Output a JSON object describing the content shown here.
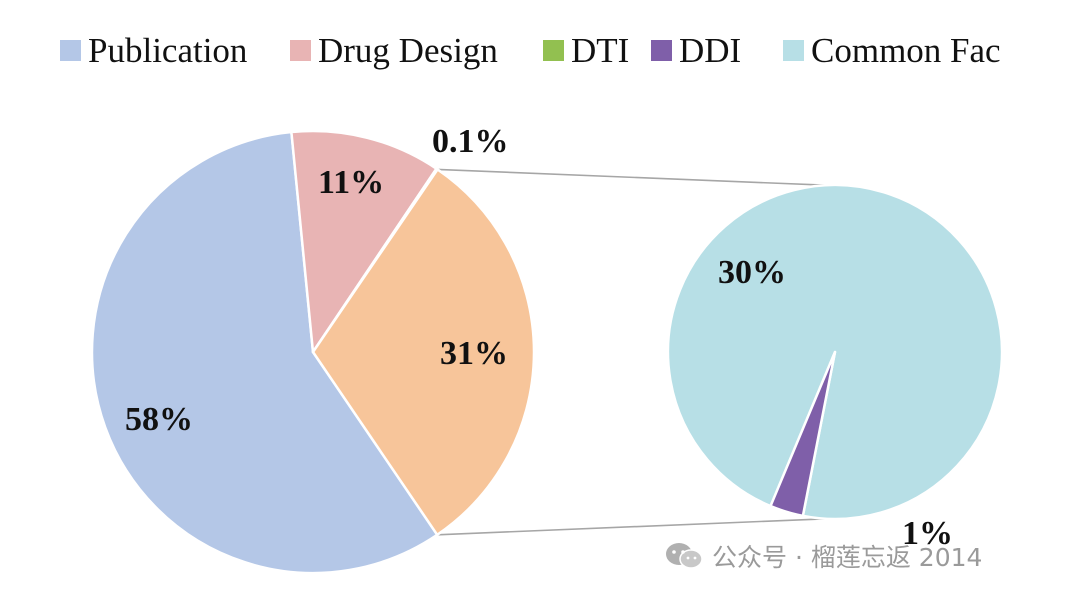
{
  "chart_data": {
    "type": "pie",
    "legend": {
      "placement": "top",
      "entries": [
        {
          "name": "Publication",
          "color": "#b4c7e7"
        },
        {
          "name": "Drug Design",
          "color": "#e8b4b4"
        },
        {
          "name": "DTI",
          "color": "#92c050"
        },
        {
          "name": "DDI",
          "color": "#7f5fa9"
        },
        {
          "name": "Common Fac",
          "color": "#b7dfe6"
        }
      ]
    },
    "main_pie": {
      "slices": [
        {
          "label": "58%",
          "value": 58,
          "color": "#b4c7e7"
        },
        {
          "label": "11%",
          "value": 11,
          "color": "#e8b4b4"
        },
        {
          "label": "0.1%",
          "value": 0.1,
          "color": "#92c050"
        },
        {
          "label": "31%",
          "value": 31,
          "color": "#f7c59a"
        }
      ]
    },
    "sub_pie": {
      "slices": [
        {
          "label": "30%",
          "value": 30,
          "color": "#b7dfe6"
        },
        {
          "label": "1%",
          "value": 1,
          "color": "#7f5fa9"
        }
      ]
    }
  },
  "watermark": {
    "text": "公众号 · 榴莲忘返 2014",
    "icon": "wechat-icon"
  }
}
